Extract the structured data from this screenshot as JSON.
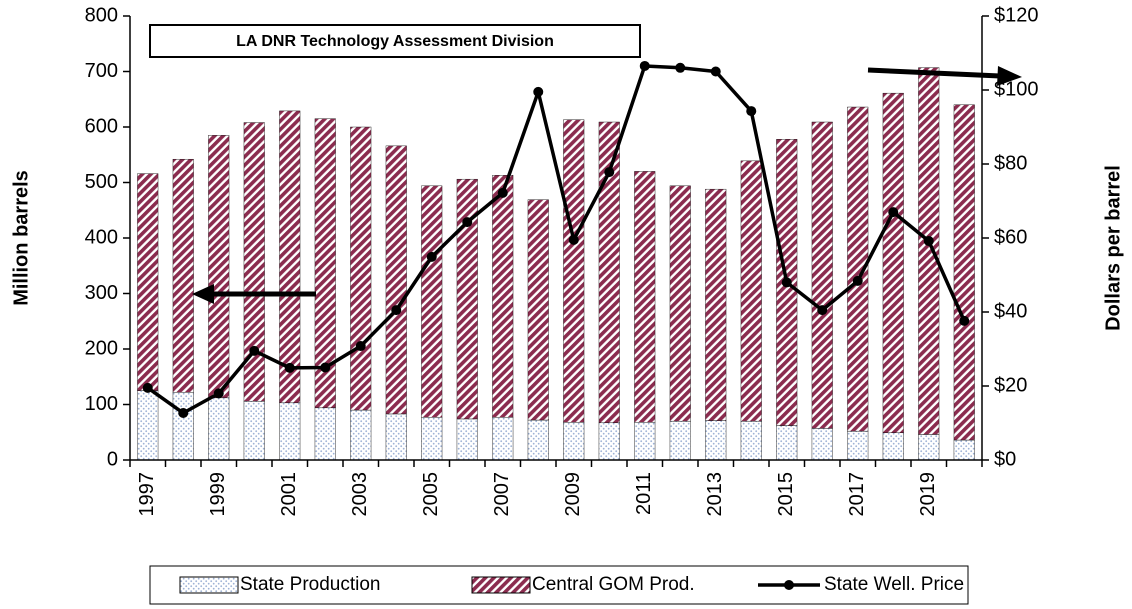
{
  "chart_data": {
    "type": "bar",
    "stacked": true,
    "annotation": "LA DNR Technology Assessment Division",
    "y_label": "Million barrels",
    "y2_label": "Dollars per barrel",
    "categories": [
      "1997",
      null,
      "1999",
      null,
      "2001",
      null,
      "2003",
      null,
      "2005",
      null,
      "2007",
      null,
      "2009",
      null,
      "2011",
      null,
      "2013",
      null,
      "2015",
      null,
      "2017",
      null,
      "2019",
      null
    ],
    "series": [
      {
        "name": "State Production",
        "type": "bar",
        "color": "#9fb3d6",
        "values": [
          125,
          122,
          112,
          106,
          103,
          94,
          90,
          83,
          77,
          74,
          77,
          72,
          68,
          67,
          68,
          70,
          71,
          70,
          62,
          57,
          52,
          49,
          46,
          36
        ]
      },
      {
        "name": "Central GOM Prod.",
        "type": "bar",
        "color": "#8b2c4f",
        "values": [
          391,
          420,
          473,
          502,
          526,
          521,
          510,
          483,
          417,
          432,
          436,
          397,
          545,
          542,
          452,
          424,
          417,
          469,
          516,
          552,
          584,
          612,
          661,
          604
        ]
      },
      {
        "name": "State Well. Price",
        "type": "line",
        "axis": "y2",
        "color": "#000000",
        "values": [
          19.5,
          12.7,
          18,
          29.5,
          24.9,
          25,
          30.8,
          40.5,
          54.9,
          64.3,
          72.2,
          99.5,
          59.5,
          77.8,
          106.5,
          106,
          105,
          94.3,
          48,
          40.5,
          48.4,
          67,
          59.2,
          37.6
        ]
      }
    ],
    "ylim": [
      0,
      800
    ],
    "yticks": [
      0,
      100,
      200,
      300,
      400,
      500,
      600,
      700,
      800
    ],
    "y2lim": [
      0,
      120
    ],
    "y2ticks": [
      {
        "value": 0,
        "label": "$0"
      },
      {
        "value": 20,
        "label": "$20"
      },
      {
        "value": 40,
        "label": "$40"
      },
      {
        "value": 60,
        "label": "$60"
      },
      {
        "value": 80,
        "label": "$80"
      },
      {
        "value": 100,
        "label": "$100"
      },
      {
        "value": 120,
        "label": "$120"
      }
    ],
    "legend": "bottom"
  }
}
